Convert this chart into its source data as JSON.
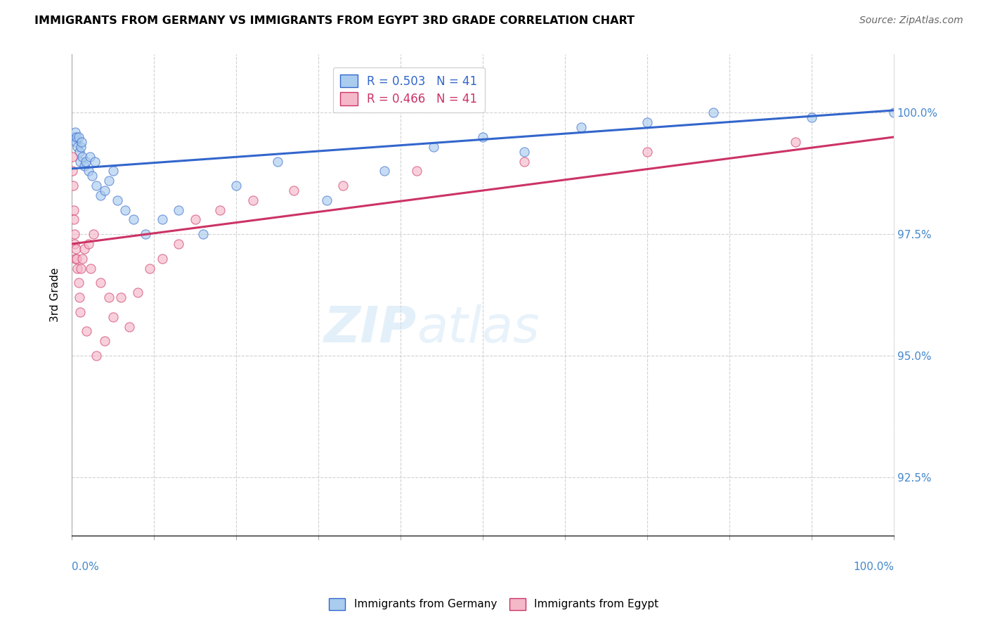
{
  "title": "IMMIGRANTS FROM GERMANY VS IMMIGRANTS FROM EGYPT 3RD GRADE CORRELATION CHART",
  "source": "Source: ZipAtlas.com",
  "ylabel": "3rd Grade",
  "ylabel_tick_vals": [
    92.5,
    95.0,
    97.5,
    100.0
  ],
  "xlim": [
    0,
    100
  ],
  "ylim": [
    91.3,
    101.2
  ],
  "legend_entries": [
    "Immigrants from Germany",
    "Immigrants from Egypt"
  ],
  "r_germany": 0.503,
  "n_germany": 41,
  "r_egypt": 0.466,
  "n_egypt": 41,
  "color_germany": "#aaccee",
  "color_egypt": "#f5b8c8",
  "trendline_germany": "#3366cc",
  "trendline_egypt": "#cc3366",
  "germany_trendline_x": [
    0,
    100
  ],
  "germany_trendline_y": [
    98.85,
    100.05
  ],
  "egypt_trendline_x": [
    0,
    100
  ],
  "egypt_trendline_y": [
    97.3,
    99.5
  ],
  "germany_x": [
    0.3,
    0.4,
    0.5,
    0.6,
    0.7,
    0.8,
    0.9,
    1.0,
    1.1,
    1.2,
    1.3,
    1.5,
    1.7,
    2.0,
    2.2,
    2.5,
    2.8,
    3.0,
    3.5,
    4.0,
    4.5,
    5.0,
    5.5,
    6.5,
    7.5,
    9.0,
    11.0,
    13.0,
    16.0,
    20.0,
    25.0,
    31.0,
    38.0,
    44.0,
    50.0,
    55.0,
    62.0,
    70.0,
    78.0,
    90.0,
    100.0
  ],
  "germany_y": [
    99.5,
    99.6,
    99.4,
    99.5,
    99.3,
    99.5,
    99.2,
    99.0,
    99.3,
    99.4,
    99.1,
    98.9,
    99.0,
    98.8,
    99.1,
    98.7,
    99.0,
    98.5,
    98.3,
    98.4,
    98.6,
    98.8,
    98.2,
    98.0,
    97.8,
    97.5,
    97.8,
    98.0,
    97.5,
    98.5,
    99.0,
    98.2,
    98.8,
    99.3,
    99.5,
    99.2,
    99.7,
    99.8,
    100.0,
    99.9,
    100.0
  ],
  "egypt_x": [
    0.05,
    0.1,
    0.15,
    0.2,
    0.25,
    0.3,
    0.35,
    0.4,
    0.5,
    0.6,
    0.7,
    0.8,
    0.9,
    1.0,
    1.1,
    1.3,
    1.5,
    1.8,
    2.0,
    2.3,
    2.6,
    3.0,
    3.5,
    4.0,
    4.5,
    5.0,
    6.0,
    7.0,
    8.0,
    9.5,
    11.0,
    13.0,
    15.0,
    18.0,
    22.0,
    27.0,
    33.0,
    42.0,
    55.0,
    70.0,
    88.0
  ],
  "egypt_y": [
    98.8,
    99.1,
    98.5,
    98.0,
    97.8,
    97.5,
    97.3,
    97.0,
    97.2,
    97.0,
    96.8,
    96.5,
    96.2,
    95.9,
    96.8,
    97.0,
    97.2,
    95.5,
    97.3,
    96.8,
    97.5,
    95.0,
    96.5,
    95.3,
    96.2,
    95.8,
    96.2,
    95.6,
    96.3,
    96.8,
    97.0,
    97.3,
    97.8,
    98.0,
    98.2,
    98.4,
    98.5,
    98.8,
    99.0,
    99.2,
    99.4
  ]
}
